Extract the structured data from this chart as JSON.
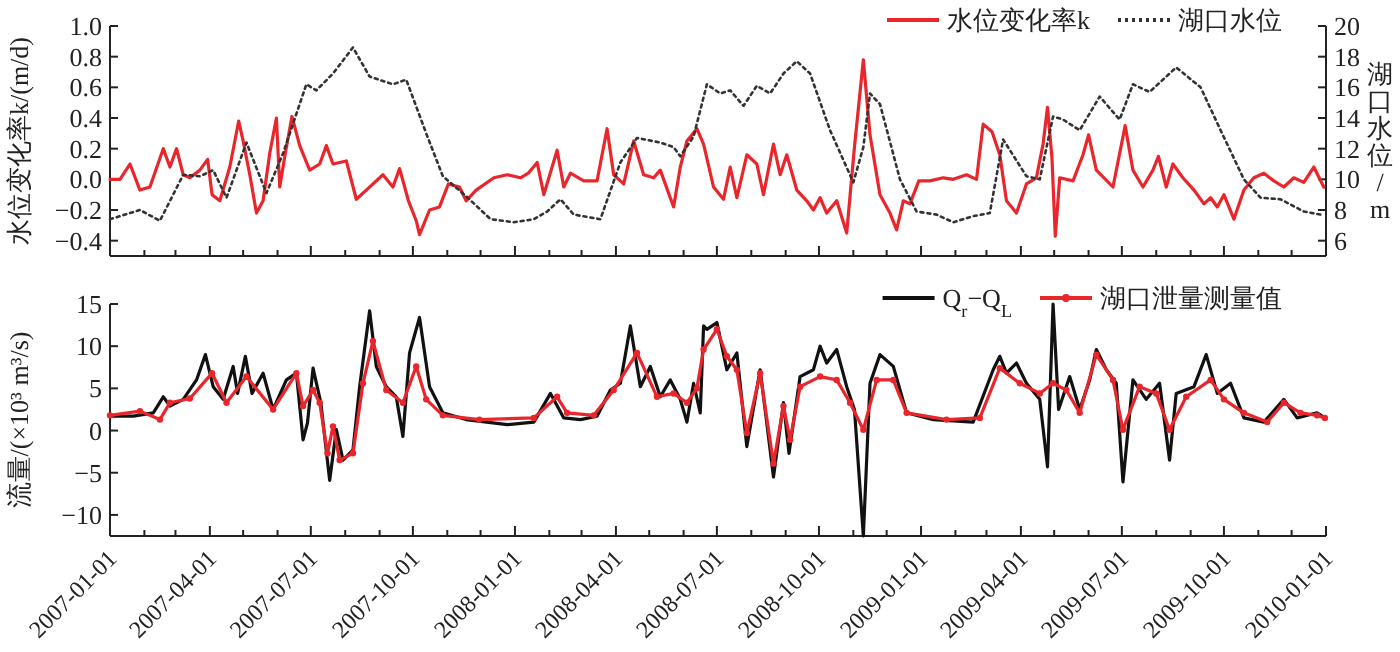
{
  "chart_data": [
    {
      "type": "line",
      "ylabel": "水位变化率k/(m/d)",
      "y2label": "湖口水位/m",
      "legend": "top right",
      "tick_labels": "y",
      "xlim": [
        "2007-01-01",
        "2010-01-01"
      ],
      "xticks": [
        {
          "value": "2007-01-01",
          "label": null
        },
        {
          "value": "2007-02-01",
          "label": null
        },
        {
          "value": "2007-03-01",
          "label": null
        },
        {
          "value": "2007-04-01",
          "label": null
        },
        {
          "value": "2007-05-01",
          "label": null
        },
        {
          "value": "2007-06-01",
          "label": null
        },
        {
          "value": "2007-07-01",
          "label": null
        },
        {
          "value": "2007-08-01",
          "label": null
        },
        {
          "value": "2007-09-01",
          "label": null
        },
        {
          "value": "2007-10-01",
          "label": null
        },
        {
          "value": "2007-11-01",
          "label": null
        },
        {
          "value": "2007-12-01",
          "label": null
        },
        {
          "value": "2008-01-01",
          "label": null
        },
        {
          "value": "2008-02-01",
          "label": null
        },
        {
          "value": "2008-03-01",
          "label": null
        },
        {
          "value": "2008-04-01",
          "label": null
        },
        {
          "value": "2008-05-01",
          "label": null
        },
        {
          "value": "2008-06-01",
          "label": null
        },
        {
          "value": "2008-07-01",
          "label": null
        },
        {
          "value": "2008-08-01",
          "label": null
        },
        {
          "value": "2008-09-01",
          "label": null
        },
        {
          "value": "2008-10-01",
          "label": null
        },
        {
          "value": "2008-11-01",
          "label": null
        },
        {
          "value": "2008-12-01",
          "label": null
        },
        {
          "value": "2009-01-01",
          "label": null
        },
        {
          "value": "2009-02-01",
          "label": null
        },
        {
          "value": "2009-03-01",
          "label": null
        },
        {
          "value": "2009-04-01",
          "label": null
        },
        {
          "value": "2009-05-01",
          "label": null
        },
        {
          "value": "2009-06-01",
          "label": null
        },
        {
          "value": "2009-07-01",
          "label": null
        },
        {
          "value": "2009-08-01",
          "label": null
        },
        {
          "value": "2009-09-01",
          "label": null
        },
        {
          "value": "2009-10-01",
          "label": null
        },
        {
          "value": "2009-11-01",
          "label": null
        },
        {
          "value": "2009-12-01",
          "label": null
        },
        {
          "value": "2010-01-01",
          "label": null
        }
      ],
      "ylim": [
        -0.5,
        1.0
      ],
      "yticks": [
        {
          "value": -0.4,
          "label": "−0.4"
        },
        {
          "value": -0.2,
          "label": "−0.2"
        },
        {
          "value": 0,
          "label": "0.0"
        },
        {
          "value": 0.2,
          "label": "0.2"
        },
        {
          "value": 0.4,
          "label": "0.4"
        },
        {
          "value": 0.6,
          "label": "0.6"
        },
        {
          "value": 0.8,
          "label": "0.8"
        },
        {
          "value": 1.0,
          "label": "1.0"
        }
      ],
      "y2lim": [
        5,
        20
      ],
      "y2ticks": [
        6,
        8,
        10,
        12,
        14,
        16,
        18,
        20
      ],
      "series": [
        {
          "name": "水位变化率k",
          "color": "#e8262b",
          "line_style": "solid",
          "marker": "none",
          "x": [
            "2007-01-01",
            "2007-01-10",
            "2007-01-19",
            "2007-01-28",
            "2007-02-06",
            "2007-02-18",
            "2007-02-24",
            "2007-03-02",
            "2007-03-08",
            "2007-03-14",
            "2007-03-23",
            "2007-03-30",
            "2007-04-03",
            "2007-04-10",
            "2007-04-19",
            "2007-04-27",
            "2007-05-01",
            "2007-05-07",
            "2007-05-13",
            "2007-05-19",
            "2007-05-25",
            "2007-05-31",
            "2007-06-03",
            "2007-06-08",
            "2007-06-14",
            "2007-06-21",
            "2007-06-30",
            "2007-07-09",
            "2007-07-15",
            "2007-07-21",
            "2007-08-02",
            "2007-08-11",
            "2007-08-20",
            "2007-09-04",
            "2007-09-13",
            "2007-09-19",
            "2007-09-27",
            "2007-10-04",
            "2007-10-07",
            "2007-10-16",
            "2007-10-25",
            "2007-11-02",
            "2007-11-12",
            "2007-11-18",
            "2007-11-27",
            "2007-12-13",
            "2007-12-25",
            "2008-01-06",
            "2008-01-13",
            "2008-01-21",
            "2008-01-27",
            "2008-02-08",
            "2008-02-14",
            "2008-02-20",
            "2008-03-03",
            "2008-03-15",
            "2008-03-24",
            "2008-03-30",
            "2008-04-08",
            "2008-04-17",
            "2008-04-26",
            "2008-05-05",
            "2008-05-11",
            "2008-05-23",
            "2008-05-29",
            "2008-06-04",
            "2008-06-13",
            "2008-06-19",
            "2008-06-28",
            "2008-07-07",
            "2008-07-13",
            "2008-07-19",
            "2008-07-28",
            "2008-08-06",
            "2008-08-12",
            "2008-08-21",
            "2008-08-27",
            "2008-09-02",
            "2008-09-11",
            "2008-09-20",
            "2008-09-26",
            "2008-10-02",
            "2008-10-08",
            "2008-10-17",
            "2008-10-26",
            "2008-11-02",
            "2008-11-10",
            "2008-11-16",
            "2008-11-25",
            "2008-12-04",
            "2008-12-10",
            "2008-12-16",
            "2008-12-22",
            "2008-12-30",
            "2009-01-09",
            "2009-01-21",
            "2009-01-30",
            "2009-02-11",
            "2009-02-20",
            "2009-02-26",
            "2009-03-06",
            "2009-03-13",
            "2009-03-19",
            "2009-03-28",
            "2009-04-06",
            "2009-04-15",
            "2009-04-21",
            "2009-04-25",
            "2009-04-29",
            "2009-05-02",
            "2009-05-06",
            "2009-05-18",
            "2009-05-27",
            "2009-06-01",
            "2009-06-08",
            "2009-06-23",
            "2009-07-04",
            "2009-07-11",
            "2009-07-20",
            "2009-07-29",
            "2009-08-03",
            "2009-08-10",
            "2009-08-16",
            "2009-08-25",
            "2009-09-04",
            "2009-09-13",
            "2009-09-19",
            "2009-09-25",
            "2009-10-01",
            "2009-10-10",
            "2009-10-19",
            "2009-10-28",
            "2009-11-06",
            "2009-11-15",
            "2009-11-24",
            "2009-12-03",
            "2009-12-12",
            "2009-12-21",
            "2009-12-30"
          ],
          "values": [
            0.0,
            0.0,
            0.1,
            -0.07,
            -0.05,
            0.2,
            0.08,
            0.2,
            0.03,
            0.01,
            0.06,
            0.13,
            -0.1,
            -0.14,
            0.08,
            0.38,
            0.25,
            0.03,
            -0.22,
            -0.14,
            0.17,
            0.4,
            -0.05,
            0.17,
            0.41,
            0.22,
            0.06,
            0.1,
            0.22,
            0.1,
            0.12,
            -0.13,
            -0.07,
            0.03,
            -0.05,
            0.07,
            -0.14,
            -0.27,
            -0.36,
            -0.2,
            -0.18,
            -0.03,
            -0.05,
            -0.14,
            -0.07,
            0.01,
            0.03,
            0.01,
            0.04,
            0.11,
            -0.1,
            0.19,
            -0.05,
            0.04,
            -0.01,
            -0.01,
            0.33,
            0.03,
            -0.03,
            0.25,
            0.03,
            0.01,
            0.06,
            -0.18,
            0.08,
            0.25,
            0.33,
            0.23,
            -0.05,
            -0.13,
            0.08,
            -0.12,
            0.16,
            0.1,
            -0.1,
            0.23,
            0.03,
            0.16,
            -0.07,
            -0.14,
            -0.2,
            -0.12,
            -0.22,
            -0.14,
            -0.35,
            0.21,
            0.78,
            0.29,
            -0.1,
            -0.22,
            -0.33,
            -0.14,
            -0.16,
            -0.01,
            -0.01,
            0.01,
            0,
            0.03,
            0,
            0.36,
            0.31,
            0.16,
            -0.14,
            -0.22,
            -0.03,
            0.01,
            0.23,
            0.47,
            0.14,
            -0.37,
            0.01,
            -0.01,
            0.16,
            0.29,
            0.06,
            -0.05,
            0.35,
            0.06,
            -0.05,
            0.06,
            0.15,
            -0.05,
            0.1,
            0.01,
            -0.07,
            -0.16,
            -0.12,
            -0.18,
            -0.1,
            -0.26,
            -0.07,
            0.01,
            0.04,
            -0.01,
            -0.05,
            0.01,
            -0.02,
            0.08,
            -0.05
          ]
        },
        {
          "name": "湖口水位",
          "color": "#333333",
          "axis": "y2",
          "line_style": "dotted",
          "marker": "none",
          "x": [
            "2007-01-01",
            "2007-01-28",
            "2007-02-15",
            "2007-03-08",
            "2007-03-23",
            "2007-04-04",
            "2007-04-16",
            "2007-05-04",
            "2007-05-22",
            "2007-06-06",
            "2007-06-27",
            "2007-07-06",
            "2007-07-21",
            "2007-08-08",
            "2007-08-23",
            "2007-09-13",
            "2007-09-25",
            "2007-10-13",
            "2007-10-28",
            "2007-11-18",
            "2007-12-10",
            "2007-12-31",
            "2008-01-18",
            "2008-01-30",
            "2008-02-11",
            "2008-02-23",
            "2008-03-18",
            "2008-04-05",
            "2008-04-20",
            "2008-05-11",
            "2008-05-23",
            "2008-05-29",
            "2008-06-10",
            "2008-06-22",
            "2008-07-04",
            "2008-07-13",
            "2008-07-25",
            "2008-08-06",
            "2008-08-18",
            "2008-08-30",
            "2008-09-11",
            "2008-09-23",
            "2008-10-11",
            "2008-11-01",
            "2008-11-10",
            "2008-11-16",
            "2008-11-25",
            "2008-12-13",
            "2008-12-28",
            "2009-01-15",
            "2009-01-30",
            "2009-02-17",
            "2009-03-04",
            "2009-03-16",
            "2009-04-06",
            "2009-04-18",
            "2009-04-30",
            "2009-05-09",
            "2009-05-24",
            "2009-06-11",
            "2009-06-29",
            "2009-07-11",
            "2009-07-26",
            "2009-08-19",
            "2009-09-10",
            "2009-09-28",
            "2009-10-19",
            "2009-11-03",
            "2009-11-21",
            "2009-12-12",
            "2009-12-27"
          ],
          "values": [
            7.4,
            8.0,
            7.3,
            10.3,
            10.2,
            10.6,
            8.8,
            12.4,
            9.1,
            11.7,
            16.2,
            15.8,
            16.9,
            18.6,
            16.7,
            16.2,
            16.5,
            13.0,
            10.2,
            8.9,
            7.4,
            7.2,
            7.4,
            7.9,
            8.7,
            7.7,
            7.4,
            11.1,
            12.7,
            12.4,
            12.1,
            11.5,
            12.8,
            16.2,
            15.6,
            15.8,
            14.8,
            16.1,
            15.6,
            16.9,
            17.7,
            16.9,
            13.2,
            9.8,
            12.1,
            15.6,
            14.9,
            10.0,
            7.9,
            7.7,
            7.2,
            7.6,
            7.8,
            12.6,
            10.2,
            10.0,
            14.1,
            13.9,
            13.2,
            15.4,
            13.9,
            16.2,
            15.7,
            17.3,
            16.0,
            13.2,
            10.0,
            8.8,
            8.7,
            7.9,
            7.7
          ]
        }
      ]
    },
    {
      "type": "line",
      "ylabel": "流量/(×10³ m³/s)",
      "legend": "top right",
      "xlim": [
        "2007-01-01",
        "2010-01-01"
      ],
      "xticks": [
        {
          "value": "2007-01-01",
          "label": "2007-01-01"
        },
        {
          "value": "2007-02-01",
          "label": null
        },
        {
          "value": "2007-03-01",
          "label": null
        },
        {
          "value": "2007-04-01",
          "label": "2007-04-01"
        },
        {
          "value": "2007-05-01",
          "label": null
        },
        {
          "value": "2007-06-01",
          "label": null
        },
        {
          "value": "2007-07-01",
          "label": "2007-07-01"
        },
        {
          "value": "2007-08-01",
          "label": null
        },
        {
          "value": "2007-09-01",
          "label": null
        },
        {
          "value": "2007-10-01",
          "label": "2007-10-01"
        },
        {
          "value": "2007-11-01",
          "label": null
        },
        {
          "value": "2007-12-01",
          "label": null
        },
        {
          "value": "2008-01-01",
          "label": "2008-01-01"
        },
        {
          "value": "2008-02-01",
          "label": null
        },
        {
          "value": "2008-03-01",
          "label": null
        },
        {
          "value": "2008-04-01",
          "label": "2008-04-01"
        },
        {
          "value": "2008-05-01",
          "label": null
        },
        {
          "value": "2008-06-01",
          "label": null
        },
        {
          "value": "2008-07-01",
          "label": "2008-07-01"
        },
        {
          "value": "2008-08-01",
          "label": null
        },
        {
          "value": "2008-09-01",
          "label": null
        },
        {
          "value": "2008-10-01",
          "label": "2008-10-01"
        },
        {
          "value": "2008-11-01",
          "label": null
        },
        {
          "value": "2008-12-01",
          "label": null
        },
        {
          "value": "2009-01-01",
          "label": "2009-01-01"
        },
        {
          "value": "2009-02-01",
          "label": null
        },
        {
          "value": "2009-03-01",
          "label": null
        },
        {
          "value": "2009-04-01",
          "label": "2009-04-01"
        },
        {
          "value": "2009-05-01",
          "label": null
        },
        {
          "value": "2009-06-01",
          "label": null
        },
        {
          "value": "2009-07-01",
          "label": "2009-07-01"
        },
        {
          "value": "2009-08-01",
          "label": null
        },
        {
          "value": "2009-09-01",
          "label": null
        },
        {
          "value": "2009-10-01",
          "label": "2009-10-01"
        },
        {
          "value": "2009-11-01",
          "label": null
        },
        {
          "value": "2009-12-01",
          "label": null
        },
        {
          "value": "2010-01-01",
          "label": "2010-01-01"
        }
      ],
      "ylim": [
        -12.5,
        15
      ],
      "yticks": [
        {
          "value": -10,
          "label": "−10"
        },
        {
          "value": -5,
          "label": "−5"
        },
        0,
        5,
        10,
        15
      ],
      "series": [
        {
          "name": "Q$_{r}$−Q$_{L}$",
          "color": "#111111",
          "line_style": "solid",
          "marker": "none",
          "x": [
            "2007-01-01",
            "2007-01-22",
            "2007-02-09",
            "2007-02-18",
            "2007-02-24",
            "2007-03-08",
            "2007-03-20",
            "2007-03-28",
            "2007-04-04",
            "2007-04-13",
            "2007-04-22",
            "2007-04-26",
            "2007-05-03",
            "2007-05-09",
            "2007-05-19",
            "2007-05-28",
            "2007-06-09",
            "2007-06-18",
            "2007-06-24",
            "2007-06-28",
            "2007-07-03",
            "2007-07-10",
            "2007-07-18",
            "2007-07-24",
            "2007-07-30",
            "2007-08-08",
            "2007-08-14",
            "2007-08-23",
            "2007-08-29",
            "2007-09-07",
            "2007-09-16",
            "2007-09-22",
            "2007-09-28",
            "2007-10-07",
            "2007-10-16",
            "2007-10-28",
            "2007-11-18",
            "2007-12-25",
            "2008-01-18",
            "2008-02-02",
            "2008-02-14",
            "2008-02-29",
            "2008-03-15",
            "2008-03-27",
            "2008-04-05",
            "2008-04-14",
            "2008-04-23",
            "2008-05-02",
            "2008-05-11",
            "2008-05-20",
            "2008-05-29",
            "2008-06-04",
            "2008-06-10",
            "2008-06-16",
            "2008-06-19",
            "2008-06-22",
            "2008-07-01",
            "2008-07-10",
            "2008-07-19",
            "2008-07-28",
            "2008-08-09",
            "2008-08-21",
            "2008-08-30",
            "2008-09-04",
            "2008-09-14",
            "2008-09-26",
            "2008-10-02",
            "2008-10-08",
            "2008-10-17",
            "2008-10-26",
            "2008-11-02",
            "2008-11-10",
            "2008-11-16",
            "2008-11-25",
            "2008-12-07",
            "2008-12-19",
            "2009-01-12",
            "2009-02-17",
            "2009-03-07",
            "2009-03-13",
            "2009-03-19",
            "2009-03-28",
            "2009-04-06",
            "2009-04-18",
            "2009-04-25",
            "2009-04-30",
            "2009-05-05",
            "2009-05-15",
            "2009-05-24",
            "2009-06-02",
            "2009-06-08",
            "2009-06-17",
            "2009-06-26",
            "2009-07-02",
            "2009-07-11",
            "2009-07-23",
            "2009-08-04",
            "2009-08-13",
            "2009-08-19",
            "2009-09-04",
            "2009-09-15",
            "2009-09-25",
            "2009-10-07",
            "2009-10-19",
            "2009-11-06",
            "2009-11-24",
            "2009-12-06",
            "2009-12-24",
            "2009-12-31"
          ],
          "values": [
            1.7,
            1.7,
            2.1,
            4.0,
            2.9,
            3.7,
            6.0,
            9.0,
            5.2,
            3.7,
            7.6,
            4.4,
            8.8,
            4.4,
            6.8,
            2.5,
            6.0,
            6.8,
            -1.1,
            0.9,
            7.4,
            3.3,
            -5.9,
            0.1,
            -3.5,
            -2.3,
            5.2,
            14.2,
            7.6,
            5.2,
            4.0,
            -0.7,
            9.2,
            13.4,
            5.2,
            2.1,
            1.3,
            0.7,
            1.0,
            4.4,
            1.5,
            1.3,
            1.7,
            4.8,
            5.6,
            12.4,
            5.2,
            7.6,
            4.0,
            6.0,
            3.7,
            1.0,
            5.6,
            2.1,
            12.4,
            12.0,
            12.8,
            7.2,
            9.2,
            -1.9,
            7.2,
            -5.5,
            3.3,
            -2.7,
            6.4,
            7.2,
            10.0,
            8.0,
            9.6,
            5.2,
            2.5,
            -12.5,
            5.6,
            9.0,
            7.6,
            2.1,
            1.3,
            1.0,
            7.2,
            8.8,
            6.8,
            8.0,
            5.6,
            3.7,
            -4.3,
            15.0,
            2.5,
            6.4,
            2.5,
            6.0,
            9.6,
            7.2,
            5.6,
            -6.1,
            6.0,
            3.7,
            5.6,
            -3.5,
            4.4,
            5.2,
            9.0,
            4.4,
            5.6,
            1.5,
            1.0,
            3.7,
            1.5,
            2.1,
            1.5
          ]
        },
        {
          "name": "湖口泄量测量值",
          "color": "#e8262b",
          "line_style": "solid",
          "marker": "circle",
          "x": [
            "2007-01-01",
            "2007-01-28",
            "2007-02-15",
            "2007-02-24",
            "2007-03-14",
            "2007-04-03",
            "2007-04-16",
            "2007-05-04",
            "2007-05-28",
            "2007-06-18",
            "2007-06-24",
            "2007-07-03",
            "2007-07-09",
            "2007-07-16",
            "2007-07-21",
            "2007-07-27",
            "2007-08-08",
            "2007-08-17",
            "2007-08-26",
            "2007-09-07",
            "2007-09-22",
            "2007-10-04",
            "2007-10-13",
            "2007-10-28",
            "2007-11-30",
            "2008-01-18",
            "2008-02-08",
            "2008-02-17",
            "2008-03-12",
            "2008-03-30",
            "2008-04-20",
            "2008-05-08",
            "2008-05-23",
            "2008-06-04",
            "2008-06-13",
            "2008-06-19",
            "2008-07-01",
            "2008-07-10",
            "2008-07-19",
            "2008-07-28",
            "2008-08-09",
            "2008-08-21",
            "2008-08-30",
            "2008-09-05",
            "2008-09-14",
            "2008-10-02",
            "2008-10-17",
            "2008-10-29",
            "2008-11-10",
            "2008-11-22",
            "2008-12-07",
            "2008-12-19",
            "2009-01-24",
            "2009-02-23",
            "2009-03-13",
            "2009-03-31",
            "2009-04-18",
            "2009-04-30",
            "2009-05-12",
            "2009-05-24",
            "2009-06-08",
            "2009-06-23",
            "2009-07-02",
            "2009-07-17",
            "2009-08-01",
            "2009-08-13",
            "2009-08-28",
            "2009-09-19",
            "2009-10-01",
            "2009-10-19",
            "2009-11-09",
            "2009-11-24",
            "2009-12-09",
            "2009-12-24",
            "2009-12-31"
          ],
          "values": [
            1.8,
            2.3,
            1.3,
            3.3,
            3.8,
            6.8,
            3.3,
            6.4,
            2.5,
            6.8,
            2.9,
            4.8,
            3.3,
            -2.7,
            0.5,
            -3.5,
            -2.7,
            5.6,
            10.6,
            4.8,
            3.3,
            7.6,
            3.7,
            1.8,
            1.3,
            1.5,
            4.0,
            2.1,
            1.8,
            4.8,
            9.2,
            4.0,
            4.4,
            3.3,
            5.0,
            9.6,
            12.0,
            8.8,
            7.2,
            -0.3,
            6.8,
            -3.9,
            2.9,
            -1.1,
            5.2,
            6.4,
            6.0,
            3.3,
            0.1,
            6.0,
            6.0,
            2.1,
            1.3,
            1.5,
            7.4,
            5.6,
            4.4,
            5.6,
            4.8,
            2.1,
            9.0,
            6.0,
            0.1,
            5.2,
            4.4,
            0.1,
            4.0,
            6.0,
            3.7,
            2.1,
            1.0,
            3.3,
            2.1,
            1.8,
            1.5
          ]
        }
      ]
    }
  ]
}
